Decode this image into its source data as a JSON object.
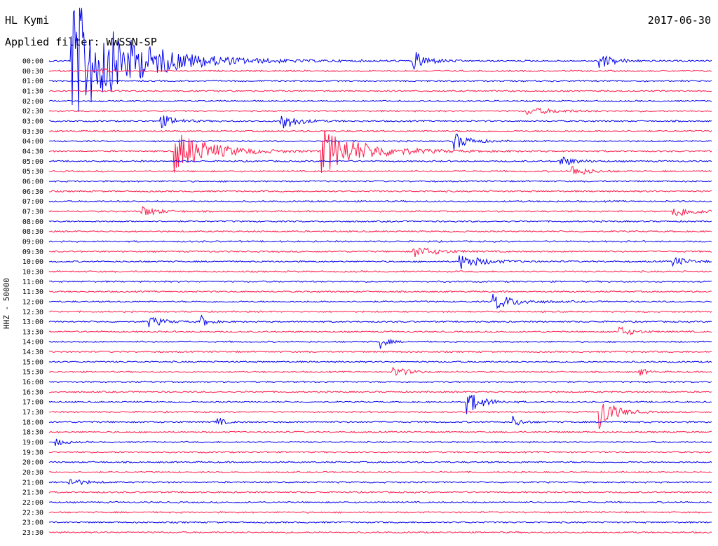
{
  "header": {
    "station": "HL Kymi",
    "date": "2017-06-30",
    "filter_label": "Applied filter: WWSSN-SP"
  },
  "axis": {
    "channel_label": "HHZ - 50000"
  },
  "colors": {
    "even_trace": "#0000ee",
    "odd_trace": "#ff1a4a"
  },
  "chart_data": {
    "type": "line",
    "title": "HL Kymi",
    "subtitle": "Applied filter: WWSSN-SP",
    "ylabel": "HHZ - 50000",
    "xlabel": "",
    "grid": false,
    "legend": "none",
    "rows": [
      "00:00",
      "00:30",
      "01:00",
      "01:30",
      "02:00",
      "02:30",
      "03:00",
      "03:30",
      "04:00",
      "04:30",
      "05:00",
      "05:30",
      "06:00",
      "06:30",
      "07:00",
      "07:30",
      "08:00",
      "08:30",
      "09:00",
      "09:30",
      "10:00",
      "10:30",
      "11:00",
      "11:30",
      "12:00",
      "12:30",
      "13:00",
      "13:30",
      "14:00",
      "14:30",
      "15:00",
      "15:30",
      "16:00",
      "16:30",
      "17:00",
      "17:30",
      "18:00",
      "18:30",
      "19:00",
      "19:30",
      "20:00",
      "20:30",
      "21:00",
      "21:30",
      "22:00",
      "22:30",
      "23:00",
      "23:30"
    ],
    "events": [
      {
        "row": "00:00",
        "t": 0.035,
        "amp": 90,
        "decay": 0.08
      },
      {
        "row": "00:00",
        "t": 0.55,
        "amp": 14,
        "decay": 0.02
      },
      {
        "row": "00:00",
        "t": 0.83,
        "amp": 11,
        "decay": 0.02
      },
      {
        "row": "00:30",
        "t": 0.08,
        "amp": 4,
        "decay": 0.01
      },
      {
        "row": "02:30",
        "t": 0.72,
        "amp": 5,
        "decay": 0.04
      },
      {
        "row": "03:00",
        "t": 0.17,
        "amp": 9,
        "decay": 0.02
      },
      {
        "row": "03:00",
        "t": 0.35,
        "amp": 14,
        "decay": 0.02
      },
      {
        "row": "04:00",
        "t": 0.61,
        "amp": 13,
        "decay": 0.02
      },
      {
        "row": "04:30",
        "t": 0.19,
        "amp": 30,
        "decay": 0.05
      },
      {
        "row": "04:30",
        "t": 0.41,
        "amp": 32,
        "decay": 0.06
      },
      {
        "row": "05:00",
        "t": 0.77,
        "amp": 8,
        "decay": 0.02
      },
      {
        "row": "05:30",
        "t": 0.79,
        "amp": 8,
        "decay": 0.02
      },
      {
        "row": "07:30",
        "t": 0.14,
        "amp": 8,
        "decay": 0.02
      },
      {
        "row": "07:30",
        "t": 0.94,
        "amp": 9,
        "decay": 0.03
      },
      {
        "row": "09:30",
        "t": 0.55,
        "amp": 8,
        "decay": 0.03
      },
      {
        "row": "10:00",
        "t": 0.62,
        "amp": 11,
        "decay": 0.03
      },
      {
        "row": "10:00",
        "t": 0.94,
        "amp": 7,
        "decay": 0.02
      },
      {
        "row": "12:00",
        "t": 0.67,
        "amp": 12,
        "decay": 0.03
      },
      {
        "row": "13:00",
        "t": 0.15,
        "amp": 8,
        "decay": 0.02
      },
      {
        "row": "13:00",
        "t": 0.23,
        "amp": 8,
        "decay": 0.01
      },
      {
        "row": "13:30",
        "t": 0.86,
        "amp": 7,
        "decay": 0.02
      },
      {
        "row": "14:00",
        "t": 0.5,
        "amp": 9,
        "decay": 0.01
      },
      {
        "row": "15:30",
        "t": 0.52,
        "amp": 7,
        "decay": 0.02
      },
      {
        "row": "15:30",
        "t": 0.89,
        "amp": 6,
        "decay": 0.01
      },
      {
        "row": "17:00",
        "t": 0.63,
        "amp": 18,
        "decay": 0.02
      },
      {
        "row": "17:30",
        "t": 0.83,
        "amp": 26,
        "decay": 0.02
      },
      {
        "row": "18:00",
        "t": 0.25,
        "amp": 9,
        "decay": 0.01
      },
      {
        "row": "18:00",
        "t": 0.7,
        "amp": 9,
        "decay": 0.01
      },
      {
        "row": "19:00",
        "t": 0.01,
        "amp": 6,
        "decay": 0.01
      },
      {
        "row": "21:00",
        "t": 0.03,
        "amp": 6,
        "decay": 0.02
      }
    ]
  }
}
